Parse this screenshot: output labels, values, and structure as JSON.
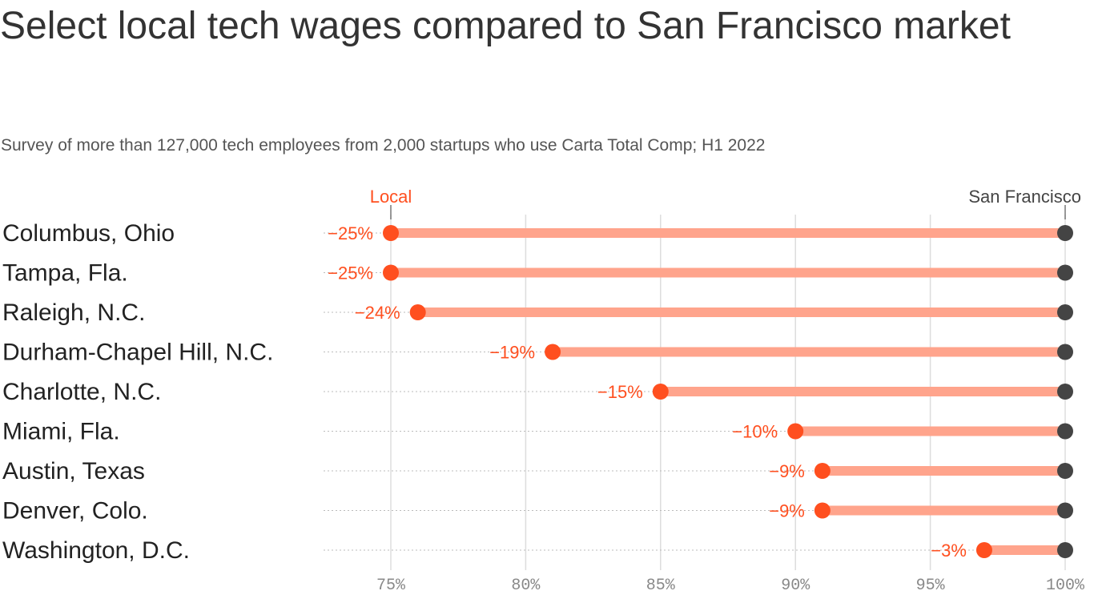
{
  "chart_data": {
    "type": "dot-range",
    "title": "Select local tech wages compared to San Francisco market",
    "subtitle": "Survey of more than 127,000 tech employees from 2,000 startups who use Carta Total Comp; H1 2022",
    "start_label": "Local",
    "end_label": "San Francisco",
    "categories": [
      "Columbus, Ohio",
      "Tampa, Fla.",
      "Raleigh, N.C.",
      "Durham-Chapel Hill, N.C.",
      "Charlotte, N.C.",
      "Miami, Fla.",
      "Austin, Texas",
      "Denver, Colo.",
      "Washington, D.C."
    ],
    "local_values": [
      75,
      75,
      76,
      81,
      85,
      90,
      91,
      91,
      97
    ],
    "sf_value": 100,
    "data_labels": [
      "−25%",
      "−25%",
      "−24%",
      "−19%",
      "−15%",
      "−10%",
      "−9%",
      "−9%",
      "−3%"
    ],
    "xlim": [
      75,
      100
    ],
    "x_ticks": [
      75,
      80,
      85,
      90,
      95,
      100
    ],
    "x_tick_labels": [
      "75%",
      "80%",
      "85%",
      "90%",
      "95%",
      "100%"
    ],
    "grid": true,
    "colors": {
      "local": "#ff4f1f",
      "bar": "#ffa48c",
      "sf": "#444444",
      "grid": "#dddddd",
      "tick": "#888888"
    }
  }
}
